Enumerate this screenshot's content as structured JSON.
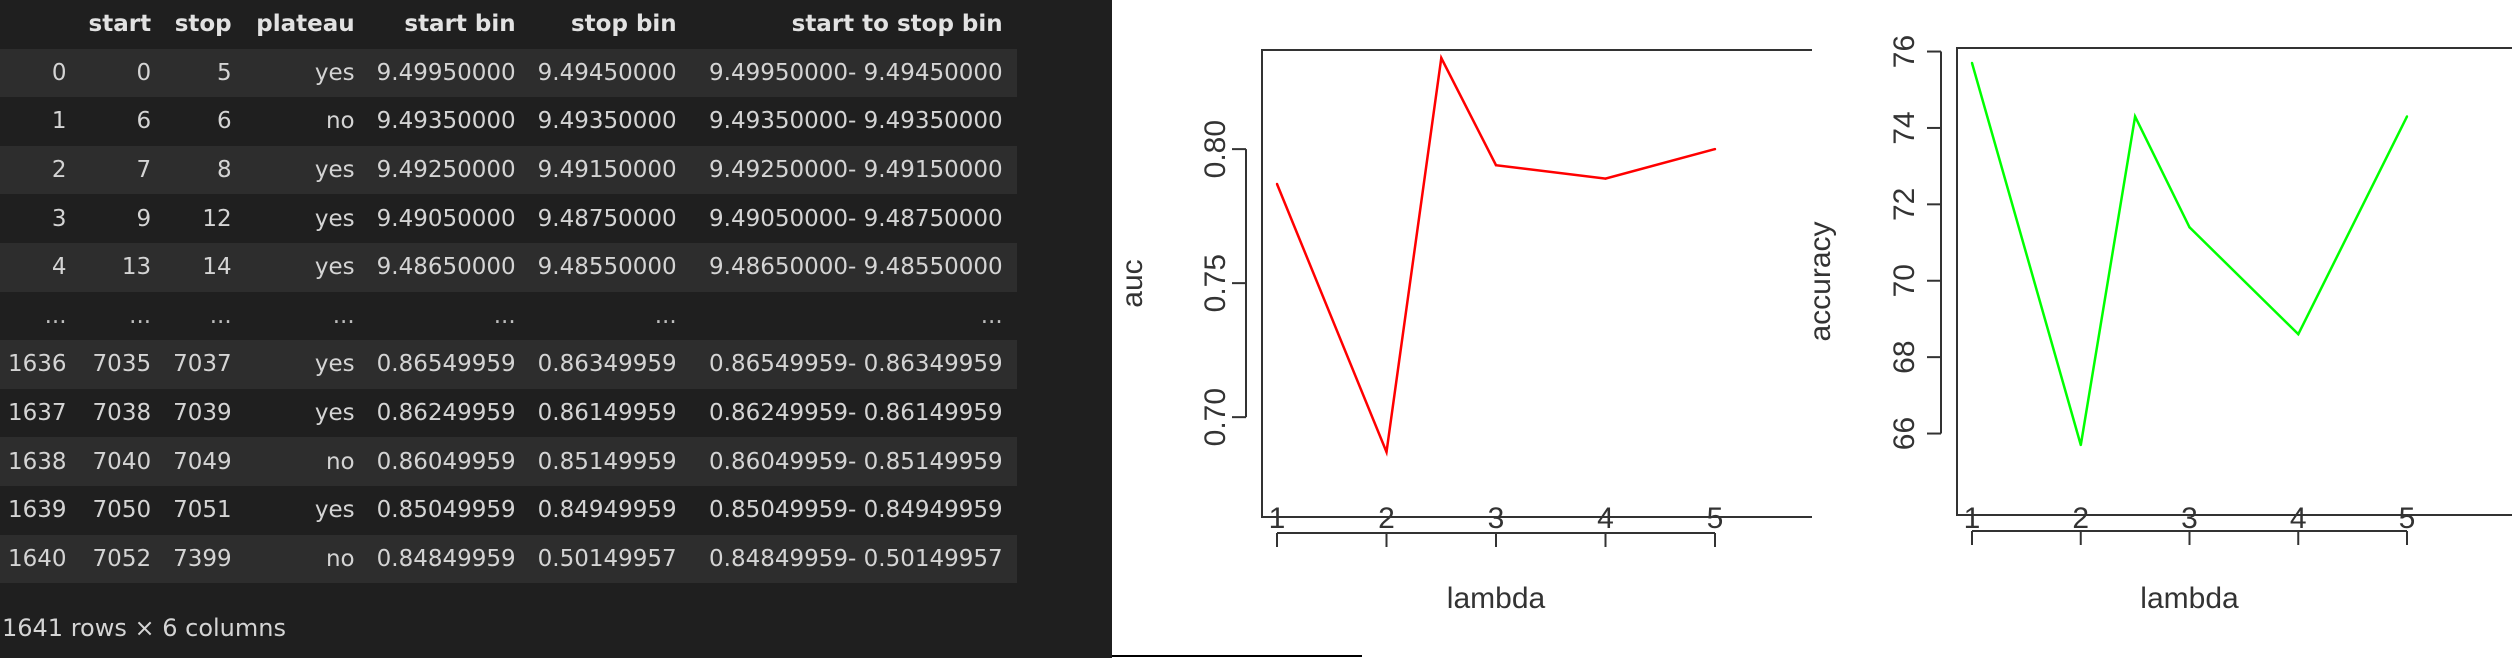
{
  "dataframe": {
    "columns": [
      "",
      "start",
      "stop",
      "plateau",
      "start bin",
      "stop bin",
      "start to stop bin"
    ],
    "rows": [
      [
        "0",
        "0",
        "5",
        "yes",
        "9.49950000",
        "9.49450000",
        "9.49950000- 9.49450000"
      ],
      [
        "1",
        "6",
        "6",
        "no",
        "9.49350000",
        "9.49350000",
        "9.49350000- 9.49350000"
      ],
      [
        "2",
        "7",
        "8",
        "yes",
        "9.49250000",
        "9.49150000",
        "9.49250000- 9.49150000"
      ],
      [
        "3",
        "9",
        "12",
        "yes",
        "9.49050000",
        "9.48750000",
        "9.49050000- 9.48750000"
      ],
      [
        "4",
        "13",
        "14",
        "yes",
        "9.48650000",
        "9.48550000",
        "9.48650000- 9.48550000"
      ],
      [
        "...",
        "...",
        "...",
        "...",
        "...",
        "...",
        "..."
      ],
      [
        "1636",
        "7035",
        "7037",
        "yes",
        "0.86549959",
        "0.86349959",
        "0.86549959- 0.86349959"
      ],
      [
        "1637",
        "7038",
        "7039",
        "yes",
        "0.86249959",
        "0.86149959",
        "0.86249959- 0.86149959"
      ],
      [
        "1638",
        "7040",
        "7049",
        "no",
        "0.86049959",
        "0.85149959",
        "0.86049959- 0.85149959"
      ],
      [
        "1639",
        "7050",
        "7051",
        "yes",
        "0.85049959",
        "0.84949959",
        "0.85049959- 0.84949959"
      ],
      [
        "1640",
        "7052",
        "7399",
        "no",
        "0.84849959",
        "0.50149957",
        "0.84849959- 0.50149957"
      ]
    ],
    "caption": "1641 rows × 6 columns"
  },
  "chart_data": [
    {
      "type": "line",
      "xlabel": "lambda",
      "ylabel": "auc",
      "x": [
        1,
        2,
        2.5,
        3,
        4,
        5
      ],
      "values": [
        0.787,
        0.687,
        0.834,
        0.794,
        0.789,
        0.8
      ],
      "xticks": [
        "1",
        "2",
        "3",
        "4",
        "5"
      ],
      "yticks": [
        "0.70",
        "0.75",
        "0.80"
      ],
      "xlim": [
        1,
        5
      ],
      "ylim": [
        0.687,
        0.834
      ],
      "color": "#ff0000",
      "grid": false
    },
    {
      "type": "line",
      "xlabel": "lambda",
      "ylabel": "accuracy",
      "x": [
        1,
        2,
        2.5,
        3,
        4,
        5
      ],
      "values": [
        75.7,
        65.7,
        74.3,
        71.4,
        68.6,
        74.3
      ],
      "xticks": [
        "1",
        "2",
        "3",
        "4",
        "5"
      ],
      "yticks": [
        "66",
        "68",
        "70",
        "72",
        "74",
        "76"
      ],
      "xlim": [
        1,
        5
      ],
      "ylim": [
        65.7,
        75.7
      ],
      "color": "#00ff00",
      "grid": false
    }
  ]
}
